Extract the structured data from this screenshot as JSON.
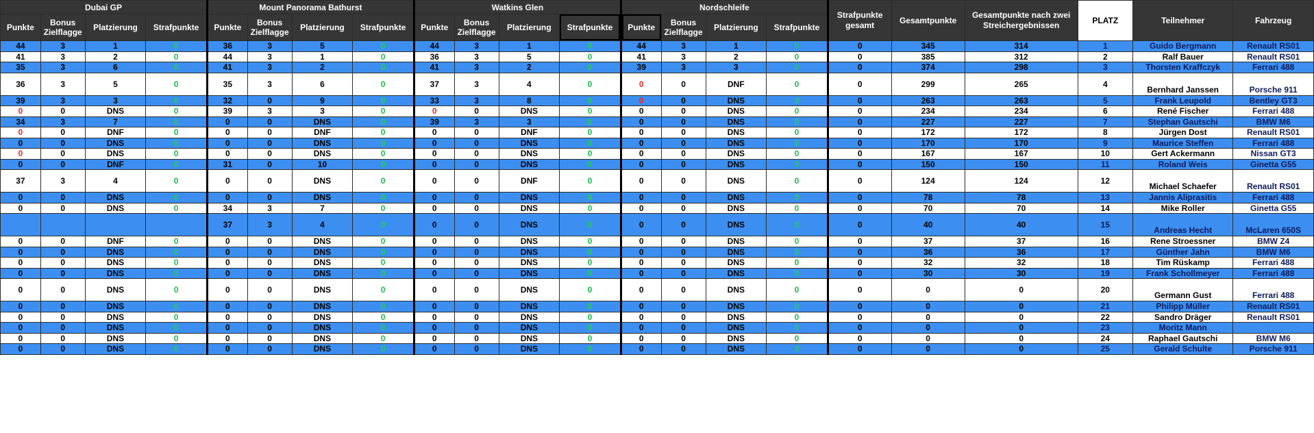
{
  "races": [
    "Dubai GP",
    "Mount Panorama Bathurst",
    "Watkins Glen",
    "Nordschleife"
  ],
  "race_columns": [
    "Punkte",
    "Bonus Zielflagge",
    "Platzierung",
    "Strafpunkte"
  ],
  "summary_columns": [
    "Strafpunkte gesamt",
    "Gesamtpunkte",
    "Gesamtpunkte nach zwei Streichergebnissen",
    "PLATZ",
    "Teilnehmer",
    "Fahrzeug"
  ],
  "colors": {
    "header_bg": "#363636",
    "row_blue": "#3c8ff0",
    "penalty_green": "#1cb84a",
    "zero_red": "#e02a2a"
  },
  "rows": [
    {
      "style": "blue",
      "tall": false,
      "races": [
        [
          "44",
          "3",
          "1",
          "0"
        ],
        [
          "36",
          "3",
          "5",
          "0"
        ],
        [
          "44",
          "3",
          "1",
          "0"
        ],
        [
          "44",
          "3",
          "1",
          "0"
        ]
      ],
      "pen_total": "0",
      "total": "345",
      "total_after": "314",
      "place": "1",
      "name": "Guido Bergmann",
      "car": "Renault RS01"
    },
    {
      "style": "white",
      "tall": false,
      "races": [
        [
          "41",
          "3",
          "2",
          "0"
        ],
        [
          "44",
          "3",
          "1",
          "0"
        ],
        [
          "36",
          "3",
          "5",
          "0"
        ],
        [
          "41",
          "3",
          "2",
          "0"
        ]
      ],
      "pen_total": "0",
      "total": "385",
      "total_after": "312",
      "place": "2",
      "name": "Ralf Bauer",
      "car": "Renault RS01"
    },
    {
      "style": "blue",
      "tall": false,
      "races": [
        [
          "35",
          "3",
          "6",
          "0"
        ],
        [
          "41",
          "3",
          "2",
          "0"
        ],
        [
          "41",
          "3",
          "2",
          "0"
        ],
        [
          "39",
          "3",
          "3",
          "0"
        ]
      ],
      "pen_total": "0",
      "total": "374",
      "total_after": "298",
      "place": "3",
      "name": "Thorsten Kraffczyk",
      "car": "Ferrari 488"
    },
    {
      "style": "white",
      "tall": true,
      "races": [
        [
          "36",
          "3",
          "5",
          "0"
        ],
        [
          "35",
          "3",
          "6",
          "0"
        ],
        [
          "37",
          "3",
          "4",
          "0"
        ],
        [
          "0",
          "0",
          "DNF",
          "0"
        ]
      ],
      "red": [
        [
          3,
          0
        ]
      ],
      "pen_total": "0",
      "total": "299",
      "total_after": "265",
      "place": "4",
      "name": "Bernhard Janssen",
      "car": "Porsche 911"
    },
    {
      "style": "blue",
      "tall": false,
      "races": [
        [
          "39",
          "3",
          "3",
          "0"
        ],
        [
          "32",
          "0",
          "9",
          "0"
        ],
        [
          "33",
          "3",
          "8",
          "0"
        ],
        [
          "0",
          "0",
          "DNS",
          "0"
        ]
      ],
      "red": [
        [
          3,
          0
        ]
      ],
      "pen_total": "0",
      "total": "263",
      "total_after": "263",
      "place": "5",
      "name": "Frank Leupold",
      "car": "Bentley GT3"
    },
    {
      "style": "white",
      "tall": false,
      "races": [
        [
          "0",
          "0",
          "DNS",
          "0"
        ],
        [
          "39",
          "3",
          "3",
          "0"
        ],
        [
          "0",
          "0",
          "DNS",
          "0"
        ],
        [
          "0",
          "0",
          "DNS",
          "0"
        ]
      ],
      "red": [
        [
          0,
          0
        ],
        [
          2,
          0
        ]
      ],
      "pen_total": "0",
      "total": "234",
      "total_after": "234",
      "place": "6",
      "name": "René Fischer",
      "car": "Ferrari 488"
    },
    {
      "style": "blue",
      "tall": false,
      "races": [
        [
          "34",
          "3",
          "7",
          "0"
        ],
        [
          "0",
          "0",
          "DNS",
          "0"
        ],
        [
          "39",
          "3",
          "3",
          "0"
        ],
        [
          "0",
          "0",
          "DNS",
          "0"
        ]
      ],
      "pen_total": "0",
      "total": "227",
      "total_after": "227",
      "place": "7",
      "name": "Stephan Gautschi",
      "car": "BMW M6"
    },
    {
      "style": "white",
      "tall": false,
      "races": [
        [
          "0",
          "0",
          "DNF",
          "0"
        ],
        [
          "0",
          "0",
          "DNF",
          "0"
        ],
        [
          "0",
          "0",
          "DNF",
          "0"
        ],
        [
          "0",
          "0",
          "DNS",
          "0"
        ]
      ],
      "red": [
        [
          0,
          0
        ]
      ],
      "pen_total": "0",
      "total": "172",
      "total_after": "172",
      "place": "8",
      "name": "Jürgen Dost",
      "car": "Renault RS01"
    },
    {
      "style": "blue",
      "tall": false,
      "races": [
        [
          "0",
          "0",
          "DNS",
          "0"
        ],
        [
          "0",
          "0",
          "DNS",
          "0"
        ],
        [
          "0",
          "0",
          "DNS",
          "0"
        ],
        [
          "0",
          "0",
          "DNS",
          "0"
        ]
      ],
      "pen_total": "0",
      "total": "170",
      "total_after": "170",
      "place": "9",
      "name": "Maurice Steffen",
      "car": "Ferrari 488"
    },
    {
      "style": "white",
      "tall": false,
      "races": [
        [
          "0",
          "0",
          "DNS",
          "0"
        ],
        [
          "0",
          "0",
          "DNS",
          "0"
        ],
        [
          "0",
          "0",
          "DNS",
          "0"
        ],
        [
          "0",
          "0",
          "DNS",
          "0"
        ]
      ],
      "red": [
        [
          0,
          0
        ]
      ],
      "pen_total": "0",
      "total": "167",
      "total_after": "167",
      "place": "10",
      "name": "Gert Ackermann",
      "car": "Nissan GT3"
    },
    {
      "style": "blue",
      "tall": false,
      "races": [
        [
          "0",
          "0",
          "DNF",
          "0"
        ],
        [
          "31",
          "0",
          "10",
          "0"
        ],
        [
          "0",
          "0",
          "DNS",
          "0"
        ],
        [
          "0",
          "0",
          "DNS",
          "0"
        ]
      ],
      "pen_total": "0",
      "total": "150",
      "total_after": "150",
      "place": "11",
      "name": "Roland Weis",
      "car": "Ginetta G55"
    },
    {
      "style": "white",
      "tall": true,
      "races": [
        [
          "37",
          "3",
          "4",
          "0"
        ],
        [
          "0",
          "0",
          "DNS",
          "0"
        ],
        [
          "0",
          "0",
          "DNF",
          "0"
        ],
        [
          "0",
          "0",
          "DNS",
          "0"
        ]
      ],
      "pen_total": "0",
      "total": "124",
      "total_after": "124",
      "place": "12",
      "name": "Michael Schaefer",
      "car": "Renault RS01"
    },
    {
      "style": "blue",
      "tall": false,
      "races": [
        [
          "0",
          "0",
          "DNS",
          "0"
        ],
        [
          "0",
          "0",
          "DNS",
          "0"
        ],
        [
          "0",
          "0",
          "DNS",
          "0"
        ],
        [
          "0",
          "0",
          "DNS",
          "0"
        ]
      ],
      "pen_total": "0",
      "total": "78",
      "total_after": "78",
      "place": "13",
      "name": "Jannis Aliprasitis",
      "car": "Ferrari 488"
    },
    {
      "style": "white",
      "tall": false,
      "races": [
        [
          "0",
          "0",
          "DNS",
          "0"
        ],
        [
          "34",
          "3",
          "7",
          "0"
        ],
        [
          "0",
          "0",
          "DNS",
          "0"
        ],
        [
          "0",
          "0",
          "DNS",
          "0"
        ]
      ],
      "pen_total": "0",
      "total": "70",
      "total_after": "70",
      "place": "14",
      "name": "Mike Roller",
      "car": "Ginetta G55"
    },
    {
      "style": "blue",
      "tall": true,
      "races": [
        [
          "",
          "",
          "",
          ""
        ],
        [
          "37",
          "3",
          "4",
          "0"
        ],
        [
          "0",
          "0",
          "DNS",
          "0"
        ],
        [
          "0",
          "0",
          "DNS",
          "0"
        ]
      ],
      "pen_total": "0",
      "total": "40",
      "total_after": "40",
      "place": "15",
      "name": "Andreas Hecht",
      "car": "McLaren 650S"
    },
    {
      "style": "white",
      "tall": false,
      "races": [
        [
          "0",
          "0",
          "DNF",
          "0"
        ],
        [
          "0",
          "0",
          "DNS",
          "0"
        ],
        [
          "0",
          "0",
          "DNS",
          "0"
        ],
        [
          "0",
          "0",
          "DNS",
          "0"
        ]
      ],
      "pen_total": "0",
      "total": "37",
      "total_after": "37",
      "place": "16",
      "name": "Rene Stroessner",
      "car": "BMW Z4"
    },
    {
      "style": "blue",
      "tall": false,
      "races": [
        [
          "0",
          "0",
          "DNS",
          "0"
        ],
        [
          "0",
          "0",
          "DNS",
          "0"
        ],
        [
          "0",
          "0",
          "DNS",
          "0"
        ],
        [
          "0",
          "0",
          "DNS",
          "0"
        ]
      ],
      "pen_total": "0",
      "total": "36",
      "total_after": "36",
      "place": "17",
      "name": "Günther Jahn",
      "car": "BMW M6"
    },
    {
      "style": "white",
      "tall": false,
      "races": [
        [
          "0",
          "0",
          "DNS",
          "0"
        ],
        [
          "0",
          "0",
          "DNS",
          "0"
        ],
        [
          "0",
          "0",
          "DNS",
          "0"
        ],
        [
          "0",
          "0",
          "DNS",
          "0"
        ]
      ],
      "pen_total": "0",
      "total": "32",
      "total_after": "32",
      "place": "18",
      "name": "Tim Rüskamp",
      "car": "Ferrari 488"
    },
    {
      "style": "blue",
      "tall": false,
      "races": [
        [
          "0",
          "0",
          "DNS",
          "0"
        ],
        [
          "0",
          "0",
          "DNS",
          "0"
        ],
        [
          "0",
          "0",
          "DNS",
          "0"
        ],
        [
          "0",
          "0",
          "DNS",
          "0"
        ]
      ],
      "pen_total": "0",
      "total": "30",
      "total_after": "30",
      "place": "19",
      "name": "Frank Schollmeyer",
      "car": "Ferrari 488"
    },
    {
      "style": "white",
      "tall": true,
      "races": [
        [
          "0",
          "0",
          "DNS",
          "0"
        ],
        [
          "0",
          "0",
          "DNS",
          "0"
        ],
        [
          "0",
          "0",
          "DNS",
          "0"
        ],
        [
          "0",
          "0",
          "DNS",
          "0"
        ]
      ],
      "pen_total": "0",
      "total": "0",
      "total_after": "0",
      "place": "20",
      "name": "Germann Gust",
      "car": "Ferrari 488"
    },
    {
      "style": "blue",
      "tall": false,
      "races": [
        [
          "0",
          "0",
          "DNS",
          "0"
        ],
        [
          "0",
          "0",
          "DNS",
          "0"
        ],
        [
          "0",
          "0",
          "DNS",
          "0"
        ],
        [
          "0",
          "0",
          "DNS",
          "0"
        ]
      ],
      "pen_total": "0",
      "total": "0",
      "total_after": "0",
      "place": "21",
      "name": "Philipp Müller",
      "car": "Renault RS01"
    },
    {
      "style": "white",
      "tall": false,
      "races": [
        [
          "0",
          "0",
          "DNS",
          "0"
        ],
        [
          "0",
          "0",
          "DNS",
          "0"
        ],
        [
          "0",
          "0",
          "DNS",
          "0"
        ],
        [
          "0",
          "0",
          "DNS",
          "0"
        ]
      ],
      "pen_total": "0",
      "total": "0",
      "total_after": "0",
      "place": "22",
      "name": "Sandro Dräger",
      "car": "Renault RS01"
    },
    {
      "style": "blue",
      "tall": false,
      "races": [
        [
          "0",
          "0",
          "DNS",
          "0"
        ],
        [
          "0",
          "0",
          "DNS",
          "0"
        ],
        [
          "0",
          "0",
          "DNS",
          "0"
        ],
        [
          "0",
          "0",
          "DNS",
          "0"
        ]
      ],
      "pen_total": "0",
      "total": "0",
      "total_after": "0",
      "place": "23",
      "name": "Moritz Mann",
      "car": ""
    },
    {
      "style": "white",
      "tall": false,
      "races": [
        [
          "0",
          "0",
          "DNS",
          "0"
        ],
        [
          "0",
          "0",
          "DNS",
          "0"
        ],
        [
          "0",
          "0",
          "DNS",
          "0"
        ],
        [
          "0",
          "0",
          "DNS",
          "0"
        ]
      ],
      "pen_total": "0",
      "total": "0",
      "total_after": "0",
      "place": "24",
      "name": "Raphael Gautschi",
      "car": "BMW M6"
    },
    {
      "style": "blue",
      "tall": false,
      "races": [
        [
          "0",
          "0",
          "DNS",
          "0"
        ],
        [
          "0",
          "0",
          "DNS",
          "0"
        ],
        [
          "0",
          "0",
          "DNS",
          "0"
        ],
        [
          "0",
          "0",
          "DNS",
          "0"
        ]
      ],
      "pen_total": "0",
      "total": "0",
      "total_after": "0",
      "place": "25",
      "name": "Gerald Schulte",
      "car": "Porsche 911"
    }
  ]
}
